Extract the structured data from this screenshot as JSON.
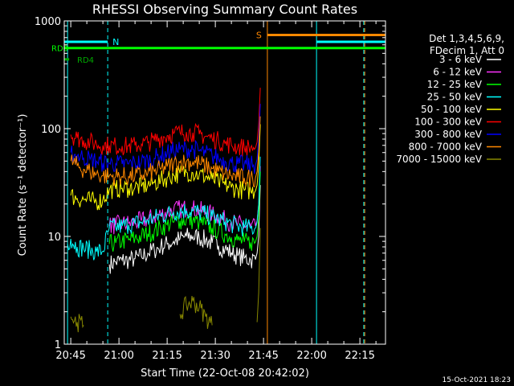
{
  "chart_data": {
    "type": "line",
    "title": "RHESSI Observing Summary Count Rates",
    "xlabel": "Start Time (22-Oct-08 20:42:02)",
    "ylabel": "Count Rate (s⁻¹ detector⁻¹)",
    "yscale": "log",
    "ylim": [
      1,
      1000
    ],
    "xlim_minutes": [
      -2.03,
      97.97
    ],
    "x_tick_labels": [
      "20:45",
      "21:00",
      "21:15",
      "21:30",
      "21:45",
      "22:00",
      "22:15"
    ],
    "x_tick_minutes": [
      0,
      15,
      30,
      45,
      60,
      75,
      90
    ],
    "y_tick_labels": [
      "1",
      "10",
      "100",
      "1000"
    ],
    "y_tick_values": [
      1,
      10,
      100,
      1000
    ],
    "legend_header": [
      "Det 1,3,4,5,6,9,",
      "FDecim 1, Att 0"
    ],
    "legend_position": "right",
    "x_points_minutes": [
      -1,
      0,
      2,
      4,
      6,
      8,
      10,
      12,
      14,
      16,
      18,
      20,
      22,
      24,
      26,
      28,
      30,
      32,
      34,
      36,
      38,
      40,
      42,
      44,
      46,
      48,
      50,
      52,
      54,
      56,
      57.5,
      58,
      58.5,
      59
    ],
    "series": [
      {
        "name": "3 - 6 keV",
        "color": "#ffffff",
        "values": [
          null,
          null,
          null,
          null,
          null,
          null,
          null,
          5.5,
          5.8,
          6,
          6,
          6.2,
          6.5,
          7,
          7.5,
          8,
          8.5,
          9,
          9.5,
          10,
          10,
          9.8,
          9.3,
          8.7,
          8.2,
          7.6,
          7.1,
          6.6,
          6.3,
          6.1,
          6.1,
          7,
          10,
          30
        ]
      },
      {
        "name": "6 - 12 keV",
        "color": "#ff33ff",
        "values": [
          null,
          null,
          null,
          null,
          null,
          null,
          null,
          12.5,
          12.8,
          13,
          13.2,
          13.5,
          14,
          14.5,
          15.2,
          16,
          16.8,
          17.5,
          18,
          18.2,
          18,
          17.5,
          16.8,
          16,
          15,
          14.2,
          13.5,
          13,
          12.6,
          12.4,
          12.5,
          14,
          20,
          45
        ]
      },
      {
        "name": "12 - 25 keV",
        "color": "#00ff00",
        "values": [
          null,
          null,
          null,
          null,
          null,
          null,
          null,
          8.5,
          8.7,
          9,
          9.3,
          9.6,
          10,
          10.6,
          11.2,
          12,
          12.8,
          13.5,
          14,
          14.3,
          14,
          13.5,
          12.8,
          12,
          11.2,
          10.5,
          9.8,
          9.2,
          8.9,
          8.8,
          8.9,
          10,
          15,
          40
        ]
      },
      {
        "name": "25 - 50 keV",
        "color": "#00ffff",
        "values": [
          8.5,
          9.5,
          8,
          7.8,
          7.5,
          7.2,
          7.3,
          12,
          12.2,
          12.5,
          12.8,
          13.2,
          13.6,
          14.2,
          14.8,
          15.5,
          16.2,
          16.8,
          17.2,
          17.4,
          17.2,
          16.7,
          16,
          15.2,
          14.4,
          13.7,
          13,
          12.5,
          12.1,
          11.9,
          12,
          13.5,
          20,
          55
        ]
      },
      {
        "name": "50 - 100 keV",
        "color": "#ffff00",
        "values": [
          null,
          24,
          22.5,
          22,
          21.5,
          21,
          22,
          27,
          27.5,
          28,
          28,
          28.5,
          29,
          30,
          31.5,
          33,
          35,
          37,
          38.5,
          39.5,
          39,
          37.5,
          36,
          34,
          32,
          30,
          28.5,
          27.5,
          26.8,
          26.5,
          26.5,
          30,
          45,
          110
        ]
      },
      {
        "name": "100 - 300 keV",
        "color": "#ff0000",
        "values": [
          null,
          88,
          82,
          78,
          75,
          72,
          70,
          70,
          69,
          69,
          69,
          70,
          72,
          74,
          78,
          82,
          86,
          90,
          92,
          93,
          92,
          89,
          85,
          81,
          77,
          73,
          70,
          68,
          67,
          66.5,
          66.5,
          75,
          110,
          240
        ]
      },
      {
        "name": "300 - 800 keV",
        "color": "#0000ff",
        "values": [
          null,
          60,
          56,
          54,
          52,
          50,
          48,
          48,
          47.5,
          47,
          47,
          48,
          49,
          51,
          53,
          56,
          59,
          62,
          64,
          65,
          64.5,
          62,
          59,
          56,
          53,
          50,
          48,
          47,
          46.5,
          46,
          46,
          52,
          80,
          170
        ]
      },
      {
        "name": "800 - 7000 keV",
        "color": "#ff8800",
        "values": [
          null,
          50,
          45,
          42,
          40,
          38,
          36.5,
          36.5,
          36,
          36,
          36,
          36.5,
          37,
          38.5,
          40,
          42,
          44.5,
          47,
          48.5,
          49.5,
          49,
          47.5,
          45,
          42.5,
          40,
          38,
          36.5,
          35.5,
          35,
          34.8,
          35,
          40,
          60,
          130
        ]
      },
      {
        "name": "7000 - 15000 keV",
        "color": "#888800",
        "values": [
          null,
          1.8,
          1.6,
          1.5,
          null,
          null,
          null,
          null,
          null,
          null,
          null,
          null,
          null,
          null,
          null,
          null,
          null,
          null,
          1.9,
          2.3,
          2.5,
          2.2,
          1.8,
          1.5,
          null,
          null,
          null,
          null,
          null,
          null,
          null,
          1.6,
          3,
          12
        ]
      }
    ],
    "annotations": {
      "attenuator_states": [
        {
          "label": "RD0",
          "color": "#00ff00",
          "start_minute": -2,
          "end_minute": 98,
          "level": 560
        },
        {
          "label": "RD4",
          "color": "#00aa00",
          "start_minute": -2,
          "end_minute": -0.5,
          "level": 440
        }
      ],
      "night_label": "N",
      "saa_label": "S",
      "night_intervals": [
        [
          -2,
          11.5
        ],
        [
          76.5,
          98
        ]
      ],
      "saa_intervals": [
        [
          61.2,
          98
        ]
      ],
      "cyan_boundaries_minutes": [
        -1,
        11.5,
        76.5,
        91.2
      ],
      "orange_boundaries_minutes": [
        61.2,
        91.5
      ],
      "level_night": 640,
      "level_saa": 740
    }
  },
  "footer": {
    "timestamp": "15-Oct-2021 18:23"
  }
}
